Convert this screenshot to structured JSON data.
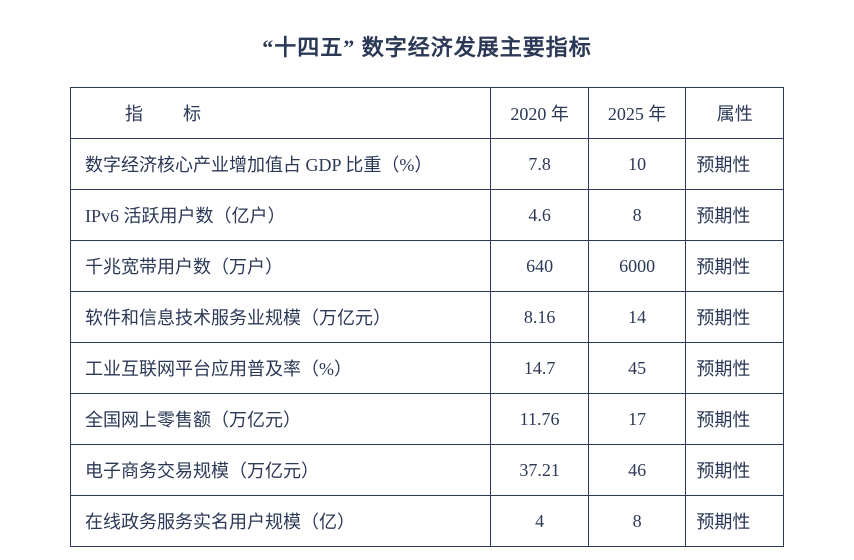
{
  "title": "“十四五” 数字经济发展主要指标",
  "table": {
    "title_fontsize": 22,
    "title_color": "#2b3856",
    "border_color": "#2b3856",
    "border_width": 1.5,
    "cell_fontsize": 18,
    "text_color": "#2b3856",
    "background_color": "#ffffff",
    "column_widths_pct": [
      56,
      13,
      13,
      13
    ],
    "columns": [
      "指标",
      "2020 年",
      "2025 年",
      "属性"
    ],
    "header_indicator_label_spaced": "指    标",
    "rows": [
      {
        "indicator": "数字经济核心产业增加值占 GDP 比重（%）",
        "y2020": "7.8",
        "y2025": "10",
        "attr": "预期性"
      },
      {
        "indicator": "IPv6 活跃用户数（亿户）",
        "y2020": "4.6",
        "y2025": "8",
        "attr": "预期性"
      },
      {
        "indicator": "千兆宽带用户数（万户）",
        "y2020": "640",
        "y2025": "6000",
        "attr": "预期性"
      },
      {
        "indicator": "软件和信息技术服务业规模（万亿元）",
        "y2020": "8.16",
        "y2025": "14",
        "attr": "预期性"
      },
      {
        "indicator": "工业互联网平台应用普及率（%）",
        "y2020": "14.7",
        "y2025": "45",
        "attr": "预期性"
      },
      {
        "indicator": "全国网上零售额（万亿元）",
        "y2020": "11.76",
        "y2025": "17",
        "attr": "预期性"
      },
      {
        "indicator": "电子商务交易规模（万亿元）",
        "y2020": "37.21",
        "y2025": "46",
        "attr": "预期性"
      },
      {
        "indicator": "在线政务服务实名用户规模（亿）",
        "y2020": "4",
        "y2025": "8",
        "attr": "预期性"
      }
    ]
  }
}
